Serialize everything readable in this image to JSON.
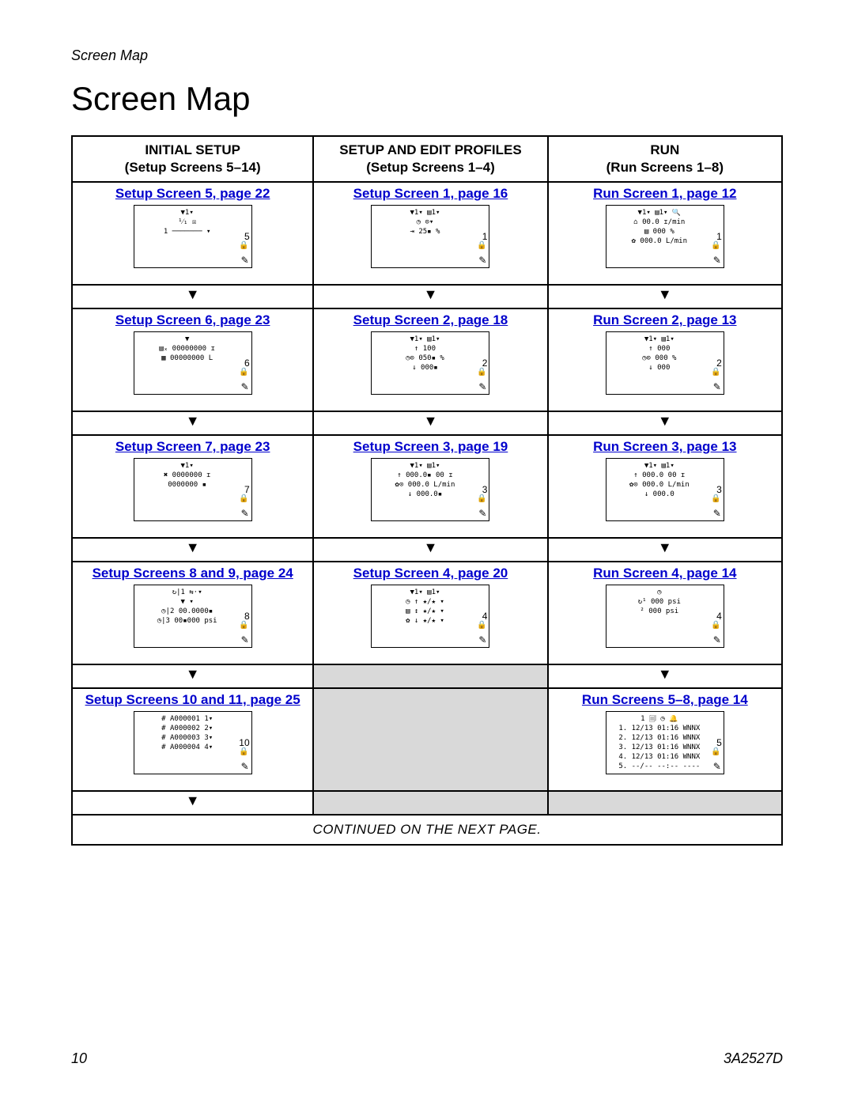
{
  "running_head": "Screen Map",
  "title": "Screen Map",
  "footer": {
    "page_number": "10",
    "doc_id": "3A2527D"
  },
  "continued_text": "CONTINUED ON THE NEXT PAGE.",
  "columns": [
    {
      "heading_line1": "INITIAL  SETUP",
      "heading_line2": "(Setup Screens 5–14)"
    },
    {
      "heading_line1": "SETUP AND EDIT PROFILES",
      "heading_line2": "(Setup Screens 1–4)"
    },
    {
      "heading_line1": "RUN",
      "heading_line2": "(Run Screens 1–8)"
    }
  ],
  "cells": {
    "r0c0": {
      "link_text": "Setup Screen 5, page 22",
      "screen_no": "5"
    },
    "r0c1": {
      "link_text": "Setup Screen 1, page 16",
      "screen_no": "1"
    },
    "r0c2": {
      "link_text": "Run Screen 1, page 12",
      "screen_no": "1"
    },
    "r1c0": {
      "link_text": "Setup Screen 6, page 23",
      "screen_no": "6"
    },
    "r1c1": {
      "link_text": "Setup Screen 2, page 18",
      "screen_no": "2"
    },
    "r1c2": {
      "link_text": "Run Screen 2, page 13",
      "screen_no": "2"
    },
    "r2c0": {
      "link_text": "Setup Screen 7, page 23",
      "screen_no": "7"
    },
    "r2c1": {
      "link_text": "Setup Screen 3, page 19",
      "screen_no": "3"
    },
    "r2c2": {
      "link_text": "Run Screen 3, page 13",
      "screen_no": "3"
    },
    "r3c0": {
      "link_text": "Setup Screens 8 and 9, page 24",
      "screen_no": "8"
    },
    "r3c1": {
      "link_text": "Setup Screen 4, page 20",
      "screen_no": "4"
    },
    "r3c2": {
      "link_text": "Run Screen 4, page 14",
      "screen_no": "4"
    },
    "r4c0": {
      "link_text": "Setup Screens 10 and 11, page 25",
      "screen_no": "10"
    },
    "r4c2": {
      "link_text": "Run Screens 5–8, page 14",
      "screen_no": "5"
    }
  },
  "thumb_details": {
    "r0c0": [
      "▼1▾",
      "¹⁄₁  ☒",
      "  1  ───────  ▾"
    ],
    "r0c1": [
      "▼1▾  ▤1▾",
      "◷   ⊙▾",
      "⇥   25▪ %"
    ],
    "r0c2": [
      "▼1▾ ▤1▾  🔍",
      "⌂  00.0 ɪ/min",
      "▤  000 %",
      "✿  000.0 L/min"
    ],
    "r1c0": [
      "▼",
      "▤ₓ 00000000 ɪ",
      "▦  00000000 L"
    ],
    "r1c1": [
      "▼1▾ ▤1▾",
      " ↑  100",
      "◷⊙ 050▪ %",
      " ↓  000▪"
    ],
    "r1c2": [
      "▼1▾ ▤1▾",
      " ↑   000",
      "◷⊙ 000 %",
      " ↓   000"
    ],
    "r2c0": [
      "▼1▾",
      "✖  0000000 ɪ",
      "   0000000 ▪"
    ],
    "r2c1": [
      "▼1▾ ▤1▾",
      " ↑ 000.0▪ 00 ɪ",
      "✿⊙ 000.0 L/min",
      " ↓ 000.0▪"
    ],
    "r2c2": [
      "▼1▾ ▤1▾",
      " ↑ 000.0 00 ɪ",
      "✿⊙ 000.0 L/min",
      " ↓ 000.0"
    ],
    "r3c0": [
      "↻|1 ⇆⋅▾",
      "▼    ▾",
      "◷|2 00.0000▪",
      "◷|3 00▪000 psi"
    ],
    "r3c1": [
      "▼1▾ ▤1▾",
      "◷ ↑  ★/★  ▾",
      "▤ ↕  ★/★  ▾",
      "✿ ↓  ★/★  ▾"
    ],
    "r3c2": [
      "   ◷",
      "↻¹  000 psi",
      " ²  000 psi"
    ],
    "r4c0": [
      "# A000001 1▾",
      "# A000002 2▾",
      "# A000003 3▾",
      "# A000004 4▾"
    ],
    "r4c2": [
      " 1   🗐   ◷   🔔",
      "1. 12/13 01:16 WNNX",
      "2. 12/13 01:16 WNNX",
      "3. 12/13 01:16 WNNX",
      "4. 12/13 01:16 WNNX",
      "5. --/-- --:-- ----"
    ]
  },
  "arrow_glyph": "▼",
  "link_color": "#0000cc",
  "colors": {
    "border": "#000000",
    "empty_cell": "#d9d9d9",
    "background": "#ffffff"
  }
}
